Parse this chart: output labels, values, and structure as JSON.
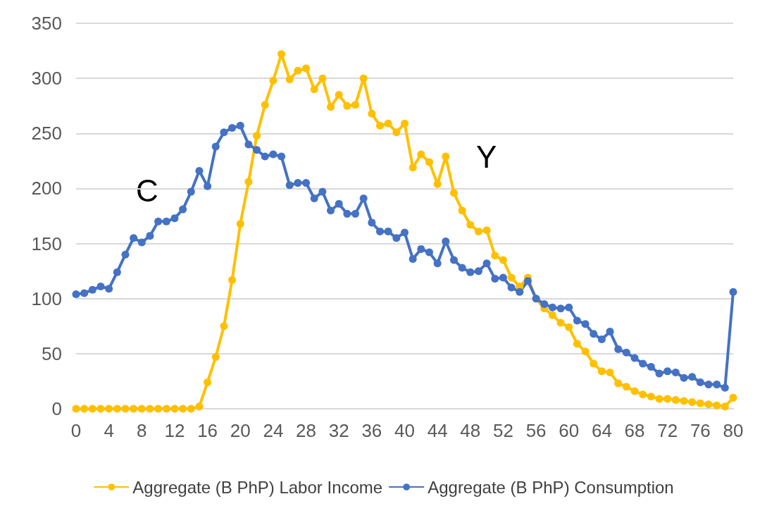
{
  "chart_data": {
    "type": "line",
    "x": [
      0,
      1,
      2,
      3,
      4,
      5,
      6,
      7,
      8,
      9,
      10,
      11,
      12,
      13,
      14,
      15,
      16,
      17,
      18,
      19,
      20,
      21,
      22,
      23,
      24,
      25,
      26,
      27,
      28,
      29,
      30,
      31,
      32,
      33,
      34,
      35,
      36,
      37,
      38,
      39,
      40,
      41,
      42,
      43,
      44,
      45,
      46,
      47,
      48,
      49,
      50,
      51,
      52,
      53,
      54,
      55,
      56,
      57,
      58,
      59,
      60,
      61,
      62,
      63,
      64,
      65,
      66,
      67,
      68,
      69,
      70,
      71,
      72,
      73,
      74,
      75,
      76,
      77,
      78,
      79,
      80
    ],
    "series": [
      {
        "name": "Aggregate (B PhP) Labor Income",
        "color": "#ffc000",
        "values": [
          0,
          0,
          0,
          0,
          0,
          0,
          0,
          0,
          0,
          0,
          0,
          0,
          0,
          0,
          0,
          2,
          24,
          47,
          75,
          117,
          168,
          206,
          248,
          276,
          298,
          322,
          299,
          307,
          309,
          290,
          300,
          274,
          285,
          275,
          276,
          300,
          268,
          257,
          259,
          251,
          259,
          219,
          231,
          224,
          204,
          229,
          196,
          180,
          167,
          161,
          162,
          139,
          135,
          119,
          111,
          119,
          100,
          91,
          85,
          78,
          74,
          59,
          52,
          41,
          34,
          33,
          23,
          20,
          16,
          13,
          11,
          9,
          9,
          8,
          7,
          6,
          5,
          4,
          3,
          2,
          10
        ]
      },
      {
        "name": "Aggregate (B PhP) Consumption",
        "color": "#4472c4",
        "values": [
          104,
          105,
          108,
          111,
          109,
          124,
          140,
          155,
          151,
          157,
          170,
          170,
          173,
          181,
          197,
          216,
          202,
          238,
          251,
          255,
          257,
          240,
          235,
          229,
          231,
          229,
          203,
          205,
          205,
          191,
          197,
          180,
          186,
          177,
          177,
          191,
          169,
          161,
          161,
          155,
          160,
          136,
          145,
          142,
          132,
          152,
          135,
          128,
          124,
          125,
          132,
          118,
          119,
          110,
          106,
          116,
          100,
          95,
          92,
          91,
          92,
          80,
          77,
          68,
          63,
          70,
          54,
          51,
          46,
          41,
          38,
          32,
          34,
          33,
          28,
          29,
          24,
          22,
          22,
          19,
          106
        ]
      }
    ],
    "xlim": [
      0,
      80
    ],
    "xticks": [
      0,
      4,
      8,
      12,
      16,
      20,
      24,
      28,
      32,
      36,
      40,
      44,
      48,
      52,
      56,
      60,
      64,
      68,
      72,
      76,
      80
    ],
    "ylim": [
      0,
      350
    ],
    "yticks": [
      0,
      50,
      100,
      150,
      200,
      250,
      300,
      350
    ],
    "annotations": [
      "C",
      "Y"
    ],
    "grid": "y",
    "legend": "bottom",
    "marker": "circle",
    "line_style": "solid"
  }
}
